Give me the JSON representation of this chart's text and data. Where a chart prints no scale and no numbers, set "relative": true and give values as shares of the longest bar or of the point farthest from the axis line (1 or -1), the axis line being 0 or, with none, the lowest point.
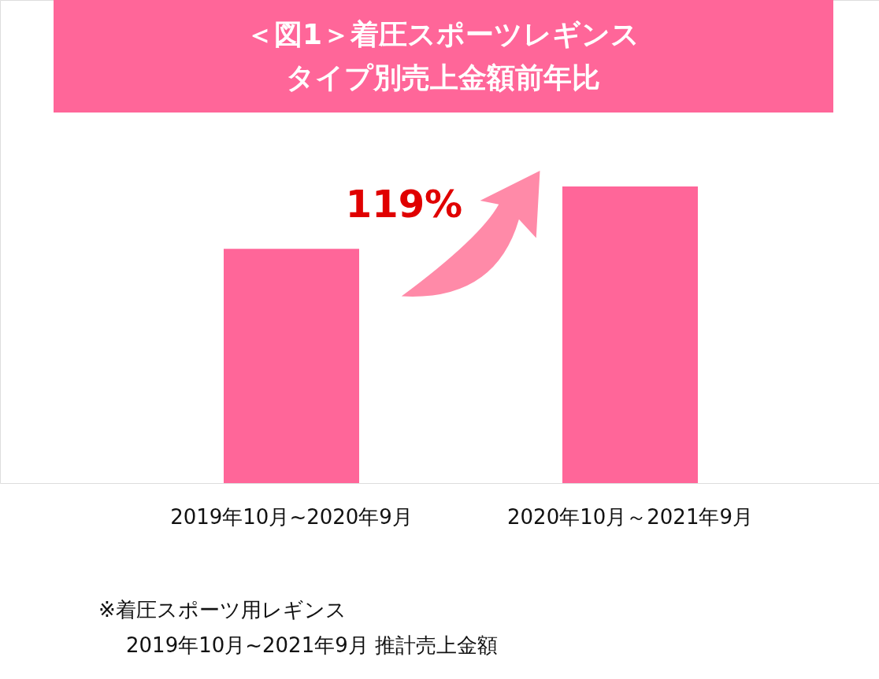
{
  "chart_data": {
    "type": "bar",
    "title": "＜図1＞着圧スポーツレギンス",
    "subtitle": "タイプ別売上金額前年比",
    "categories": [
      "2019年10月~2020年9月",
      "2020年10月～2021年9月"
    ],
    "values": [
      0.79,
      1
    ],
    "color": "#ff6699",
    "relative": true,
    "annotations": [
      "119%",
      "※着圧スポーツ用レギンス",
      "2019年10月~2021年9月 推計売上金額"
    ]
  }
}
